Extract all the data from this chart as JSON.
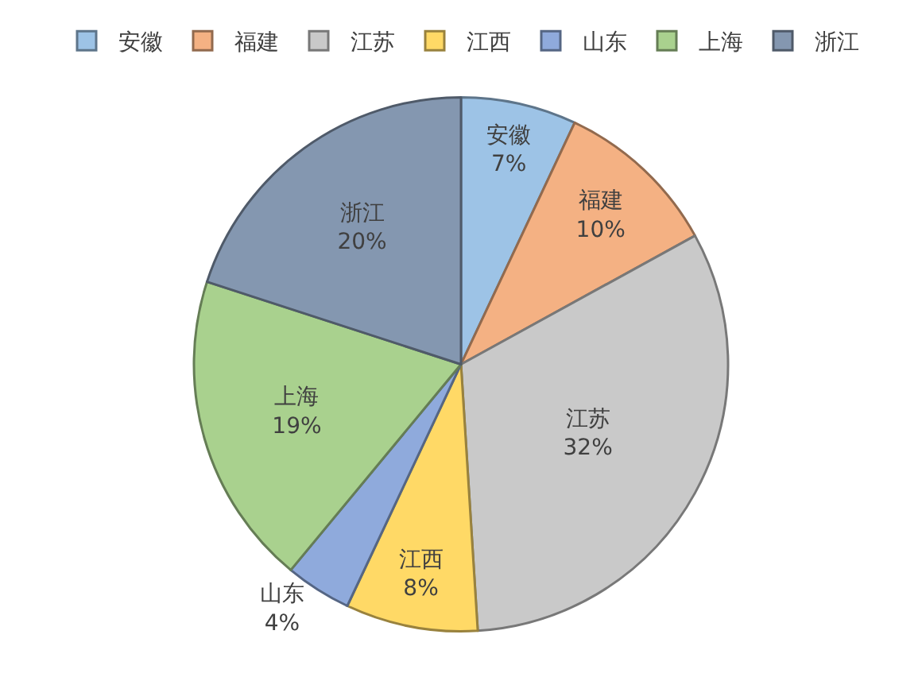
{
  "chart_data": {
    "type": "pie",
    "categories": [
      "安徽",
      "福建",
      "江苏",
      "江西",
      "山东",
      "上海",
      "浙江"
    ],
    "values": [
      7,
      10,
      32,
      8,
      4,
      19,
      20
    ],
    "value_labels": [
      "7%",
      "10%",
      "32%",
      "8%",
      "4%",
      "19%",
      "20%"
    ],
    "colors": [
      "#9dc3e6",
      "#f4b183",
      "#c9c9c9",
      "#ffd966",
      "#8faadc",
      "#a9d18e",
      "#8497b0"
    ],
    "legend": "top"
  }
}
